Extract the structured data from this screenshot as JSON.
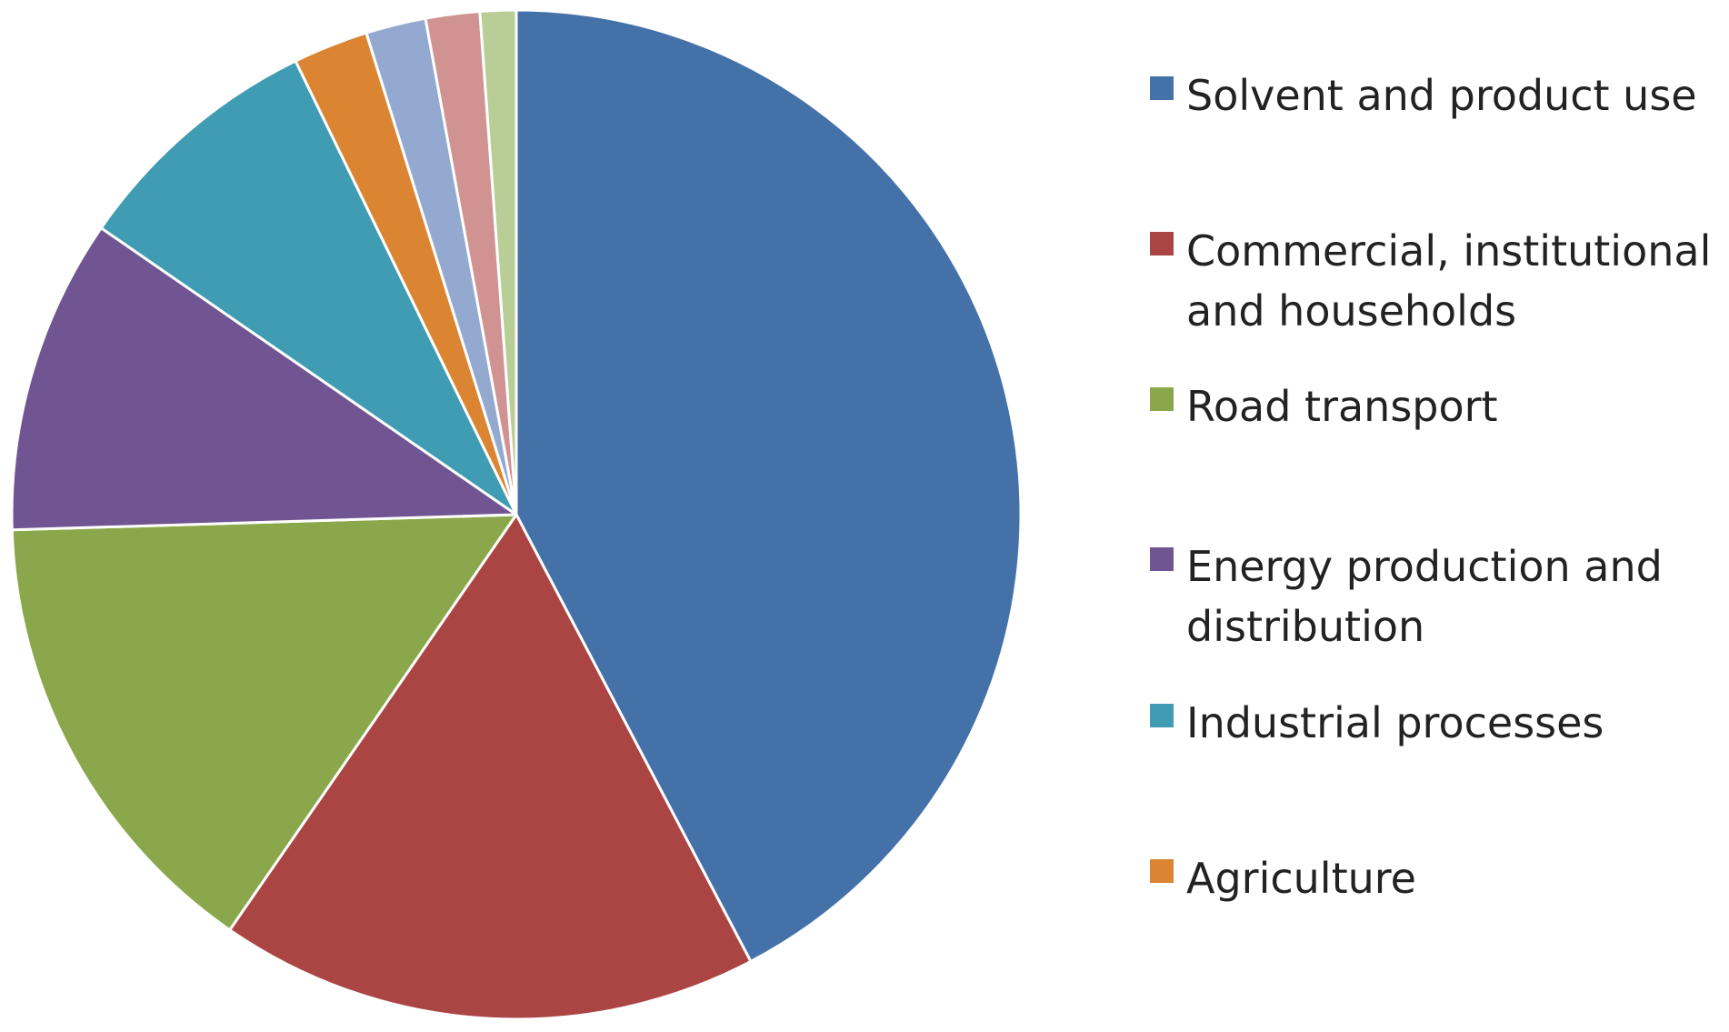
{
  "chart_data": {
    "type": "pie",
    "title": "",
    "start_angle_deg": 0,
    "direction": "clockwise",
    "slices": [
      {
        "label": "Solvent and product use",
        "value": 44.0,
        "color": "#4472A8"
      },
      {
        "label": "Commercial, institutional and households",
        "value": 18.0,
        "color": "#AA4544"
      },
      {
        "label": "Road transport",
        "value": 15.5,
        "color": "#8AA84B"
      },
      {
        "label": "Energy production and distribution",
        "value": 10.5,
        "color": "#715592"
      },
      {
        "label": "Industrial processes",
        "value": 8.5,
        "color": "#3F9CB3"
      },
      {
        "label": "Agriculture",
        "value": 2.5,
        "color": "#DB8533"
      },
      {
        "label": "",
        "value": 2.0,
        "color": "#93A9CF"
      },
      {
        "label": "",
        "value": 1.8,
        "color": "#D19392"
      },
      {
        "label": "",
        "value": 1.2,
        "color": "#B9CD96"
      }
    ],
    "legend": {
      "position": "right",
      "items": [
        {
          "label": "Solvent and product use",
          "color": "#4472A8"
        },
        {
          "label": "Commercial, institutional and households",
          "color": "#AA4544"
        },
        {
          "label": "Road transport",
          "color": "#8AA84B"
        },
        {
          "label": "Energy production and distribution",
          "color": "#715592"
        },
        {
          "label": "Industrial processes",
          "color": "#3F9CB3"
        },
        {
          "label": "Agriculture",
          "color": "#DB8533"
        }
      ]
    }
  }
}
